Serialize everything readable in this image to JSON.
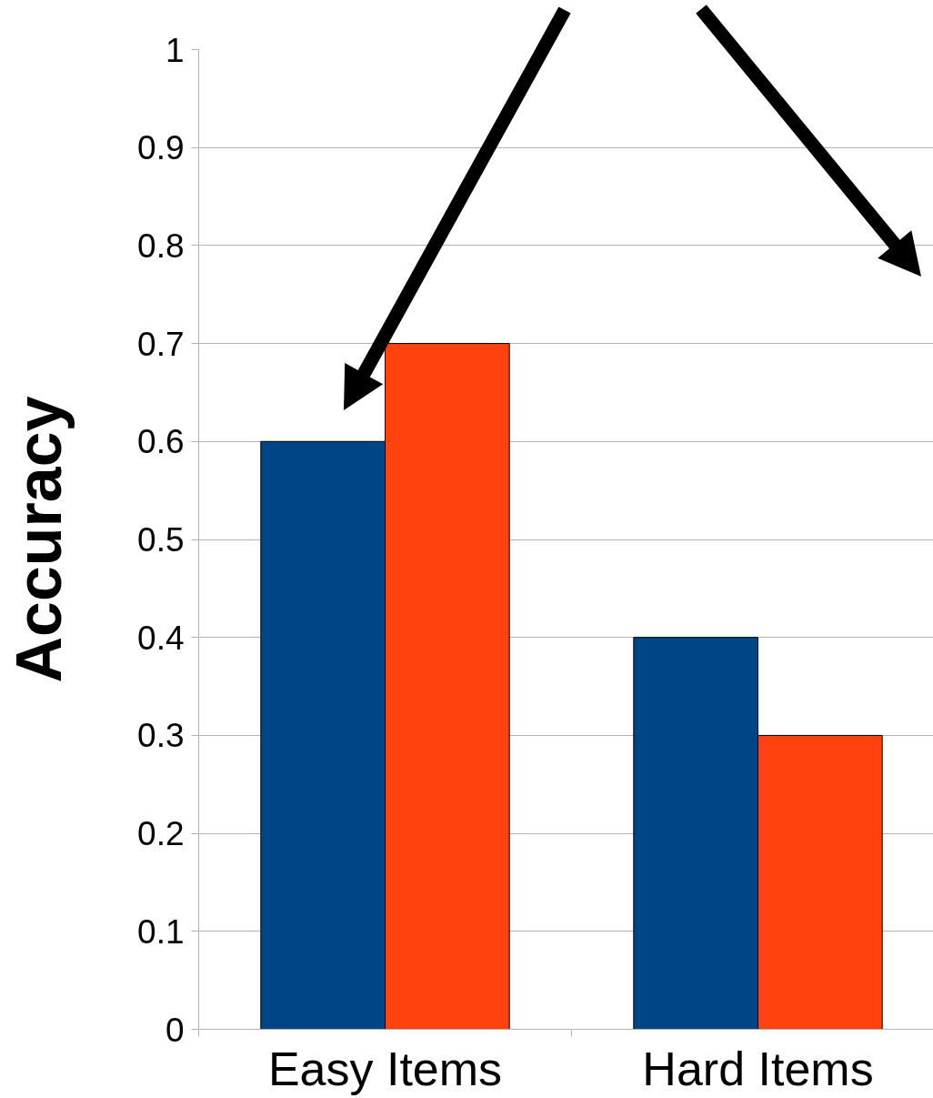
{
  "chart_data": {
    "type": "bar",
    "ylabel": "Accuracy",
    "categories": [
      "Easy Items",
      "Hard Items"
    ],
    "series": [
      {
        "color": "#004586",
        "values": [
          0.6,
          0.4
        ]
      },
      {
        "color": "#ff420e",
        "values": [
          0.7,
          0.3
        ]
      }
    ],
    "ylim": [
      0,
      1
    ],
    "yticks": [
      0,
      0.1,
      0.2,
      0.3,
      0.4,
      0.5,
      0.6,
      0.7,
      0.8,
      0.9,
      1
    ],
    "grid": "y"
  }
}
